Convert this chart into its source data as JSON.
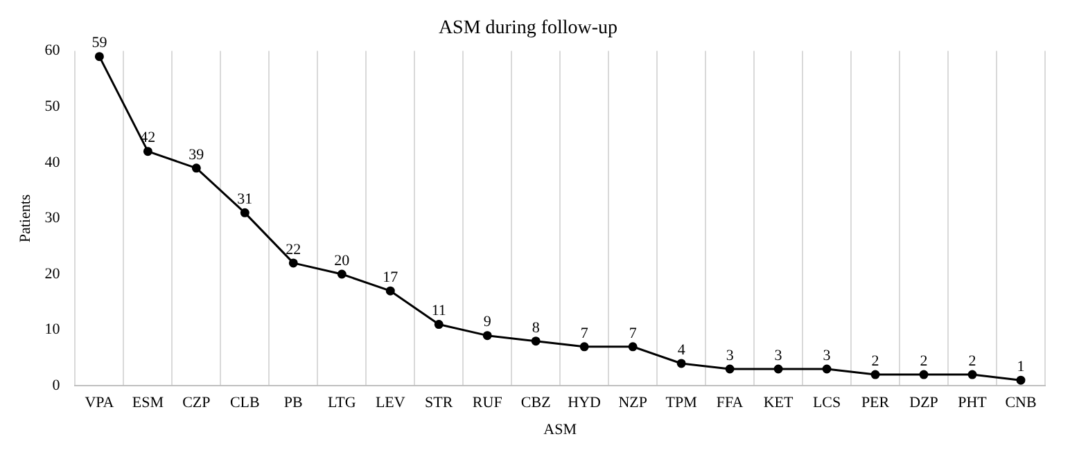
{
  "chart_data": {
    "type": "line",
    "title": "ASM during follow-up",
    "xlabel": "ASM",
    "ylabel": "Patients",
    "categories": [
      "VPA",
      "ESM",
      "CZP",
      "CLB",
      "PB",
      "LTG",
      "LEV",
      "STR",
      "RUF",
      "CBZ",
      "HYD",
      "NZP",
      "TPM",
      "FFA",
      "KET",
      "LCS",
      "PER",
      "DZP",
      "PHT",
      "CNB"
    ],
    "series": [
      {
        "color": "#000000",
        "values": [
          59,
          42,
          39,
          31,
          22,
          20,
          17,
          11,
          9,
          8,
          7,
          7,
          4,
          3,
          3,
          3,
          2,
          2,
          2,
          1
        ]
      }
    ],
    "ylim": [
      0,
      60
    ],
    "yticks": [
      0,
      10,
      20,
      30,
      40,
      50,
      60
    ],
    "grid": "x",
    "marker": "circle",
    "line_style": "solid",
    "data_labels": true,
    "legend": false
  }
}
